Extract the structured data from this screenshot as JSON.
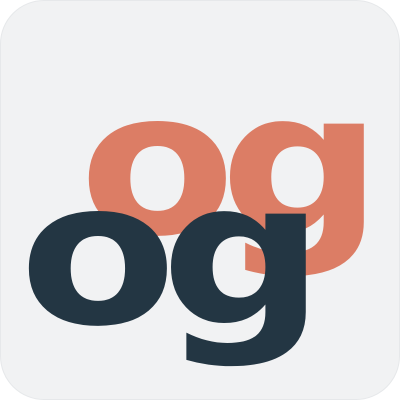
{
  "logo": {
    "back_mark": "og",
    "front_mark": "og",
    "colors": {
      "background": "#f1f2f3",
      "back_mark": "#dc7d65",
      "front_mark": "#233643"
    }
  }
}
